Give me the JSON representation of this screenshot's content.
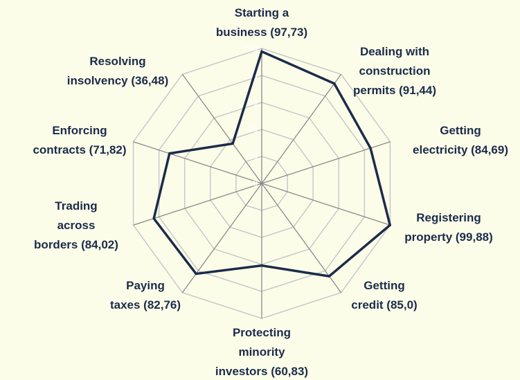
{
  "chart_data": {
    "type": "radar",
    "categories": [
      [
        "Starting a",
        "business (97,73)"
      ],
      [
        "Dealing with",
        "construction",
        "permits (91,44)"
      ],
      [
        "Getting",
        "electricity (84,69)"
      ],
      [
        "Registering",
        "property (99,88)"
      ],
      [
        "Getting",
        "credit (85,0)"
      ],
      [
        "Protecting",
        "minority",
        "investors (60,83)"
      ],
      [
        "Paying",
        "taxes (82,76)"
      ],
      [
        "Trading",
        "across",
        "borders (84,02)"
      ],
      [
        "Enforcing",
        "contracts (71,82)"
      ],
      [
        "Resolving",
        "insolvency (36,48)"
      ]
    ],
    "values": [
      97.73,
      91.44,
      84.69,
      99.88,
      85.0,
      60.83,
      82.76,
      84.02,
      71.82,
      36.48
    ],
    "color": "#1c2b4a",
    "rlim": [
      0,
      100
    ],
    "rticks": [
      0,
      20,
      40,
      60,
      80,
      100
    ],
    "grid": true
  }
}
